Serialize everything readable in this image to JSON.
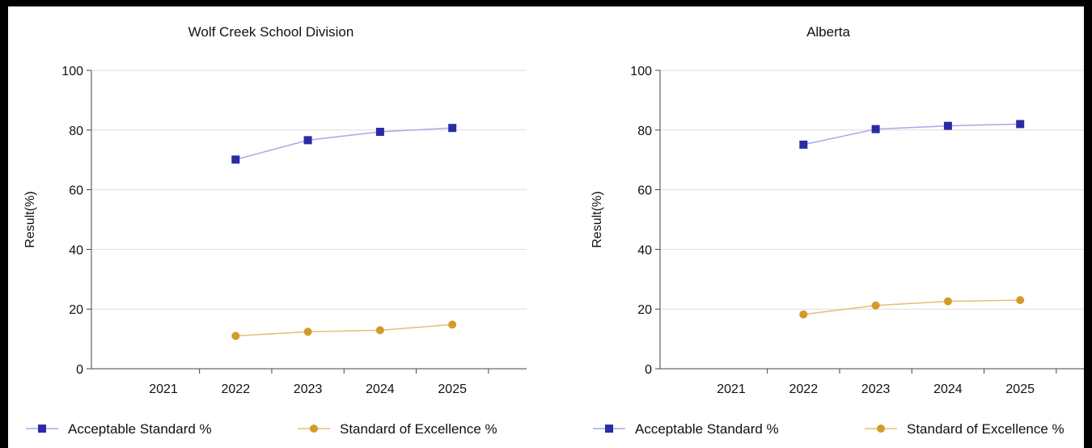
{
  "chart_data": [
    {
      "type": "line",
      "title": "Wolf Creek School Division",
      "xlabel": "",
      "ylabel": "Result(%)",
      "categories": [
        "2021",
        "2022",
        "2023",
        "2024",
        "2025"
      ],
      "ylim": [
        0,
        100
      ],
      "yticks": [
        0,
        20,
        40,
        60,
        80,
        100
      ],
      "grid": true,
      "legend_position": "bottom",
      "series": [
        {
          "name": "Acceptable Standard %",
          "color": "#2b2ba6",
          "line_color": "#a7a7e8",
          "marker": "square",
          "values": [
            null,
            70.1,
            76.6,
            79.4,
            80.7
          ]
        },
        {
          "name": "Standard of Excellence %",
          "color": "#d39b2a",
          "line_color": "#e3be78",
          "marker": "circle",
          "values": [
            null,
            11.0,
            12.4,
            12.9,
            14.8
          ]
        }
      ]
    },
    {
      "type": "line",
      "title": "Alberta",
      "xlabel": "",
      "ylabel": "Result(%)",
      "categories": [
        "2021",
        "2022",
        "2023",
        "2024",
        "2025"
      ],
      "ylim": [
        0,
        100
      ],
      "yticks": [
        0,
        20,
        40,
        60,
        80,
        100
      ],
      "grid": true,
      "legend_position": "bottom",
      "series": [
        {
          "name": "Acceptable Standard %",
          "color": "#2b2ba6",
          "line_color": "#a7a7e8",
          "marker": "square",
          "values": [
            null,
            75.1,
            80.3,
            81.4,
            82.0
          ]
        },
        {
          "name": "Standard of Excellence %",
          "color": "#d39b2a",
          "line_color": "#e3be78",
          "marker": "circle",
          "values": [
            null,
            18.2,
            21.2,
            22.6,
            23.0
          ]
        }
      ]
    }
  ]
}
